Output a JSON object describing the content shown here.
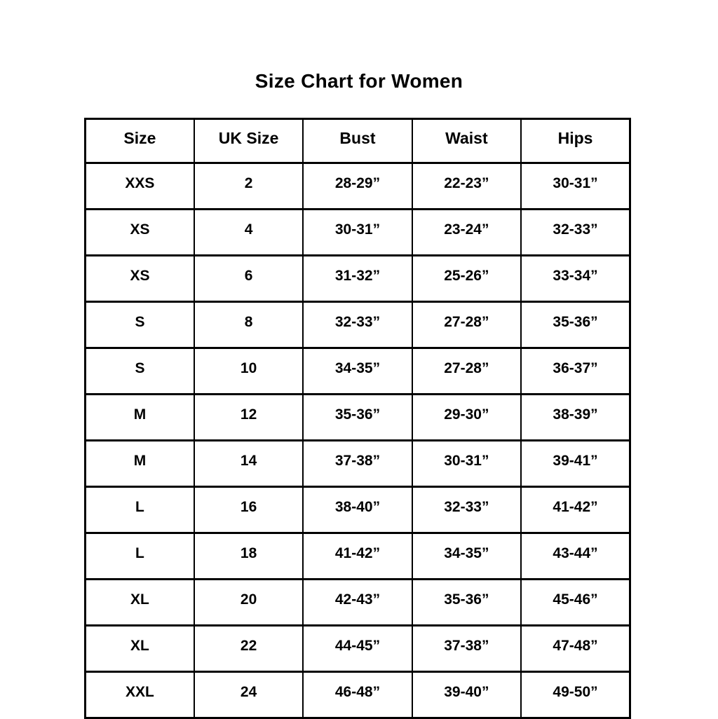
{
  "title": "Size Chart for Women",
  "colors": {
    "text": "#000000",
    "border": "#000000",
    "background": "#ffffff"
  },
  "chart_data": {
    "type": "table",
    "title": "Size Chart for Women",
    "columns": [
      "Size",
      "UK Size",
      "Bust",
      "Waist",
      "Hips"
    ],
    "rows": [
      [
        "XXS",
        "2",
        "28-29”",
        "22-23”",
        "30-31”"
      ],
      [
        "XS",
        "4",
        "30-31”",
        "23-24”",
        "32-33”"
      ],
      [
        "XS",
        "6",
        "31-32”",
        "25-26”",
        "33-34”"
      ],
      [
        "S",
        "8",
        "32-33”",
        "27-28”",
        "35-36”"
      ],
      [
        "S",
        "10",
        "34-35”",
        "27-28”",
        "36-37”"
      ],
      [
        "M",
        "12",
        "35-36”",
        "29-30”",
        "38-39”"
      ],
      [
        "M",
        "14",
        "37-38”",
        "30-31”",
        "39-41”"
      ],
      [
        "L",
        "16",
        "38-40”",
        "32-33”",
        "41-42”"
      ],
      [
        "L",
        "18",
        "41-42”",
        "34-35”",
        "43-44”"
      ],
      [
        "XL",
        "20",
        "42-43”",
        "35-36”",
        "45-46”"
      ],
      [
        "XL",
        "22",
        "44-45”",
        "37-38”",
        "47-48”"
      ],
      [
        "XXL",
        "24",
        "46-48”",
        "39-40”",
        "49-50”"
      ]
    ]
  }
}
